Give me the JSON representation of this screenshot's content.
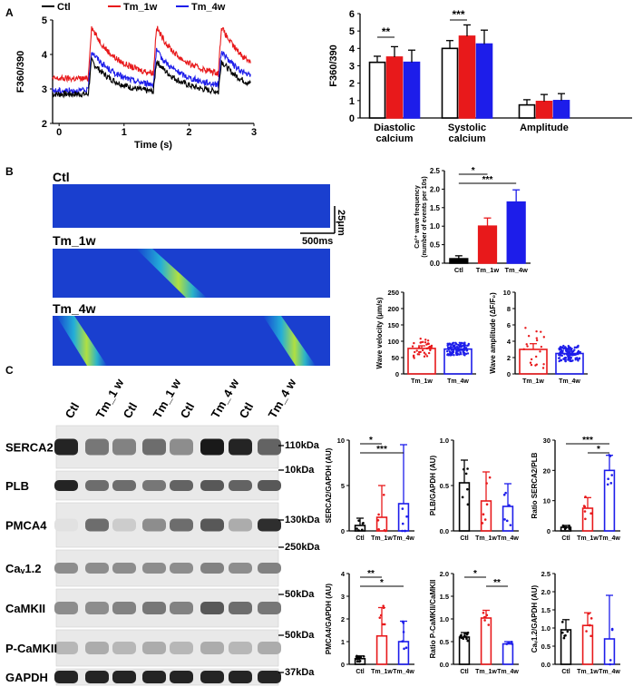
{
  "colors": {
    "ctl": "#000000",
    "tm1w": "#e8191b",
    "tm4w": "#1d1dea"
  },
  "panel_labels": [
    "A",
    "B",
    "C"
  ],
  "panelA": {
    "legend": [
      {
        "label": "Ctl",
        "color": "#000000"
      },
      {
        "label": "Tm_1w",
        "color": "#e8191b"
      },
      {
        "label": "Tm_4w",
        "color": "#1d1dea"
      }
    ],
    "trace": {
      "ylabel": "F360/390",
      "xlabel": "Time (s)",
      "xticks": [
        "0",
        "1",
        "2",
        "3"
      ],
      "yticks": [
        "2",
        "3",
        "4",
        "5"
      ]
    }
  },
  "panelB": {
    "linescans": [
      "Ctl",
      "Tm_1w",
      "Tm_4w"
    ],
    "scalebar": {
      "vertical": "25μm",
      "horizontal": "500ms"
    },
    "wave_velocity_scatter": {
      "ylabel": "Wave velocity (μm/s)",
      "yticks": [
        "0",
        "50",
        "100",
        "150",
        "200",
        "250"
      ],
      "categories": [
        "Tm_1w",
        "Tm_4w"
      ]
    },
    "wave_amplitude_scatter": {
      "ylabel": "Wave amplitude (ΔF/F₀)",
      "yticks": [
        "0",
        "2",
        "4",
        "6",
        "8",
        "10"
      ],
      "categories": [
        "Tm_1w",
        "Tm_4w"
      ]
    }
  },
  "panelC": {
    "lane_labels": [
      "Ctl",
      "Tm_1 w",
      "Ctl",
      "Tm_1 w",
      "Ctl",
      "Tm_4 w",
      "Ctl",
      "Tm_4 w"
    ],
    "blots": [
      {
        "name": "SERCA2",
        "kda": "110kDa"
      },
      {
        "name": "PLB",
        "kda": "10kDa"
      },
      {
        "name": "PMCA4",
        "kda": "130kDa"
      },
      {
        "name": "Caᵥ1.2",
        "kda": "250kDa"
      },
      {
        "name": "CaMKII",
        "kda": "50kDa"
      },
      {
        "name": "P-CaMKII",
        "kda": "50kDa"
      },
      {
        "name": "GAPDH",
        "kda": "37kDa"
      }
    ]
  },
  "chart_data": [
    {
      "type": "line",
      "id": "calcium-transient",
      "xlabel": "Time (s)",
      "ylabel": "F360/390",
      "xlim": [
        -0.1,
        3.0
      ],
      "ylim": [
        2,
        5
      ],
      "series": [
        {
          "name": "Ctl",
          "baseline": 2.85,
          "peak": 3.95,
          "decay": 2.85
        },
        {
          "name": "Tm_1w",
          "baseline": 3.3,
          "peak": 5.0,
          "decay": 3.35
        },
        {
          "name": "Tm_4w",
          "baseline": 2.95,
          "peak": 4.25,
          "decay": 3.05
        }
      ],
      "beat_times": [
        0.45,
        1.45,
        2.45
      ]
    },
    {
      "type": "bar",
      "id": "calcium-summary",
      "ylabel": "F360/390",
      "ylim": [
        0,
        6
      ],
      "yticks": [
        "0",
        "1",
        "2",
        "3",
        "4",
        "5",
        "6"
      ],
      "categories": [
        "Diastolic\ncalcium",
        "Systolic\ncalcium",
        "Amplitude"
      ],
      "series": [
        {
          "name": "Ctl",
          "values": [
            3.2,
            4.0,
            0.75
          ],
          "errors": [
            0.35,
            0.45,
            0.3
          ]
        },
        {
          "name": "Tm_1w",
          "values": [
            3.5,
            4.7,
            0.95
          ],
          "errors": [
            0.6,
            0.65,
            0.4
          ]
        },
        {
          "name": "Tm_4w",
          "values": [
            3.2,
            4.25,
            1.0
          ],
          "errors": [
            0.7,
            0.8,
            0.4
          ]
        }
      ],
      "annotations": [
        {
          "text": "**",
          "between": [
            0,
            1
          ],
          "category": 0
        },
        {
          "text": "***",
          "between": [
            0,
            1
          ],
          "category": 1
        }
      ]
    },
    {
      "type": "bar",
      "id": "wave-frequency",
      "ylabel": "Ca²⁺ wave frequency\n(number of events per 10s)",
      "ylim": [
        0,
        2.5
      ],
      "yticks": [
        "0.0",
        "0.5",
        "1.0",
        "1.5",
        "2.0",
        "2.5"
      ],
      "categories": [
        "Ctl",
        "Tm_1w",
        "Tm_4w"
      ],
      "values": [
        0.12,
        1.0,
        1.65
      ],
      "errors": [
        0.08,
        0.22,
        0.33
      ],
      "annotations": [
        {
          "text": "*",
          "between": [
            0,
            1
          ]
        },
        {
          "text": "***",
          "between": [
            0,
            2
          ]
        }
      ]
    },
    {
      "type": "bar",
      "id": "wave-velocity",
      "ylabel": "Wave velocity (μm/s)",
      "ylim": [
        0,
        250
      ],
      "yticks": [
        "0",
        "50",
        "100",
        "150",
        "200",
        "250"
      ],
      "categories": [
        "Tm_1w",
        "Tm_4w"
      ],
      "values": [
        78,
        76
      ],
      "errors": [
        8,
        5
      ]
    },
    {
      "type": "bar",
      "id": "wave-amplitude",
      "ylabel": "Wave amplitude (ΔF/F₀)",
      "ylim": [
        0,
        10
      ],
      "yticks": [
        "0",
        "2",
        "4",
        "6",
        "8",
        "10"
      ],
      "categories": [
        "Tm_1w",
        "Tm_4w"
      ],
      "values": [
        3.0,
        2.5
      ],
      "errors": [
        0.7,
        0.25
      ]
    },
    {
      "type": "bar",
      "id": "serca2-gapdh",
      "ylabel": "SERCA2/GAPDH (AU)",
      "ylim": [
        0,
        10
      ],
      "yticks": [
        "0",
        "5",
        "10"
      ],
      "categories": [
        "Ctl",
        "Tm_1w",
        "Tm_4w"
      ],
      "values": [
        0.6,
        1.5,
        3.0
      ],
      "errors": [
        0.8,
        3.5,
        6.5
      ],
      "annotations": [
        {
          "text": "*",
          "between": [
            0,
            1
          ]
        },
        {
          "text": "***",
          "between": [
            0,
            2
          ]
        }
      ]
    },
    {
      "type": "bar",
      "id": "plb-gapdh",
      "ylabel": "PLB/GAPDH (AU)",
      "ylim": [
        0,
        1.0
      ],
      "yticks": [
        "0.0",
        "0.5",
        "1.0"
      ],
      "categories": [
        "Ctl",
        "Tm_1w",
        "Tm_4w"
      ],
      "values": [
        0.53,
        0.33,
        0.27
      ],
      "errors": [
        0.25,
        0.32,
        0.25
      ]
    },
    {
      "type": "bar",
      "id": "serca2-plb-ratio",
      "ylabel": "Ratio SERCA2/PLB",
      "ylim": [
        0,
        30
      ],
      "yticks": [
        "0",
        "10",
        "20",
        "30"
      ],
      "categories": [
        "Ctl",
        "Tm_1w",
        "Tm_4w"
      ],
      "values": [
        1.2,
        7.5,
        20
      ],
      "errors": [
        0.6,
        3.5,
        5
      ],
      "annotations": [
        {
          "text": "***",
          "between": [
            0,
            2
          ]
        },
        {
          "text": "*",
          "between": [
            1,
            2
          ]
        }
      ]
    },
    {
      "type": "bar",
      "id": "pmca4-gapdh",
      "ylabel": "PMCA4/GAPDH (AU)",
      "ylim": [
        0,
        4
      ],
      "yticks": [
        "0",
        "1",
        "2",
        "3",
        "4"
      ],
      "categories": [
        "Ctl",
        "Tm_1w",
        "Tm_4w"
      ],
      "values": [
        0.25,
        1.25,
        1.0
      ],
      "errors": [
        0.12,
        1.25,
        0.9
      ],
      "annotations": [
        {
          "text": "**",
          "between": [
            0,
            1
          ]
        },
        {
          "text": "*",
          "between": [
            0,
            2
          ]
        }
      ]
    },
    {
      "type": "bar",
      "id": "pcamkii-camkii-ratio",
      "ylabel": "Ratio P-CaMKII/CaMKII",
      "ylim": [
        0,
        2.0
      ],
      "yticks": [
        "0.0",
        "0.5",
        "1.0",
        "1.5",
        "2.0"
      ],
      "categories": [
        "Ctl",
        "Tm_1w",
        "Tm_4w"
      ],
      "values": [
        0.6,
        1.02,
        0.45
      ],
      "errors": [
        0.1,
        0.17,
        0.05
      ],
      "annotations": [
        {
          "text": "*",
          "between": [
            0,
            1
          ]
        },
        {
          "text": "**",
          "between": [
            1,
            2
          ]
        }
      ]
    },
    {
      "type": "bar",
      "id": "cav12-gapdh",
      "ylabel": "Caᵥ1.2/GAPDH (AU)",
      "ylim": [
        0,
        2.5
      ],
      "yticks": [
        "0.0",
        "0.5",
        "1.0",
        "1.5",
        "2.0",
        "2.5"
      ],
      "categories": [
        "Ctl",
        "Tm_1w",
        "Tm_4w"
      ],
      "values": [
        0.95,
        1.07,
        0.7
      ],
      "errors": [
        0.28,
        0.35,
        1.2
      ]
    }
  ]
}
